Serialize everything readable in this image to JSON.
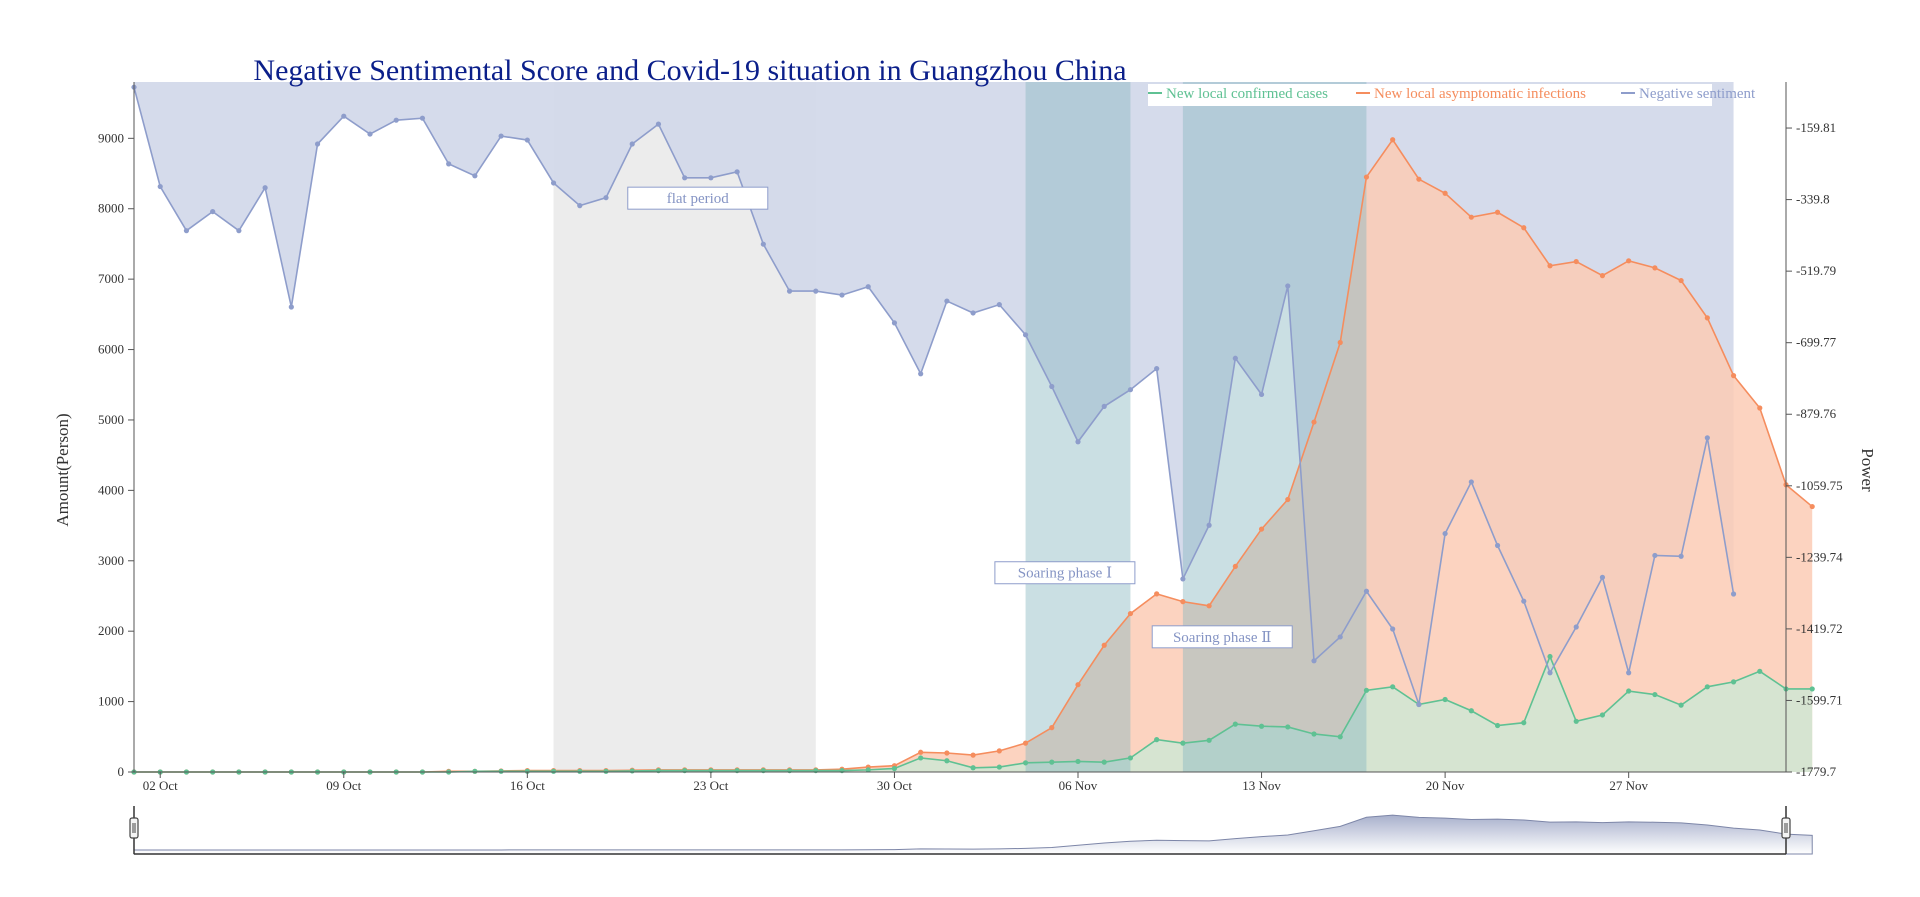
{
  "chart_data": {
    "type": "line",
    "title": "Negative Sentimental Score and Covid-19 situation in Guangzhou China",
    "ylabel": "Amount(Person)",
    "y2label": "Power",
    "x_tick_labels": [
      "02 Oct",
      "09 Oct",
      "16 Oct",
      "23 Oct",
      "30 Oct",
      "06 Nov",
      "13 Nov",
      "20 Nov",
      "27 Nov"
    ],
    "x_start": "2022-10-01",
    "x_end": "2022-12-03",
    "ylim": [
      0,
      9800
    ],
    "y_ticks": [
      0,
      1000,
      2000,
      3000,
      4000,
      5000,
      6000,
      7000,
      8000,
      9000
    ],
    "y2lim": [
      -1779.7,
      -44.0
    ],
    "y2_ticks": [
      -1779.7,
      -1599.71,
      -1419.72,
      -1239.74,
      -1059.75,
      -879.76,
      -699.77,
      -519.79,
      -339.8,
      -159.81
    ],
    "legend_position": "top-right",
    "colors": {
      "confirmed": "#5fc193",
      "asymptomatic": "#f58d5e",
      "sentiment": "#8e9dcb",
      "sentiment_fill": "#d3d9ea",
      "asym_fill": "#fccbb5",
      "conf_fill": "#c6ebd8",
      "flat_band": "#ececec",
      "phase_band": "#89b8c0",
      "title": "#0b1f8a"
    },
    "legend": [
      "New local confirmed cases",
      "New local asymptomatic infections",
      "Negative sentiment"
    ],
    "annotations": [
      {
        "text": "flat period",
        "date": "2022-10-22",
        "value": 8150
      },
      {
        "text": "Soaring phase Ⅰ",
        "date": "2022-11-05",
        "value": 2830
      },
      {
        "text": "Soaring phase Ⅱ",
        "date": "2022-11-11",
        "value": 1920
      }
    ],
    "bands": [
      {
        "name": "flat period",
        "from": "2022-10-17",
        "to": "2022-10-27"
      },
      {
        "name": "Soaring phase Ⅰ",
        "from": "2022-11-04",
        "to": "2022-11-08"
      },
      {
        "name": "Soaring phase Ⅱ",
        "from": "2022-11-10",
        "to": "2022-11-17"
      }
    ],
    "series": [
      {
        "name": "New local confirmed cases",
        "values": [
          0,
          0,
          0,
          0,
          0,
          0,
          0,
          0,
          0,
          0,
          0,
          0,
          0,
          10,
          10,
          10,
          10,
          10,
          10,
          15,
          20,
          20,
          20,
          20,
          20,
          20,
          20,
          20,
          30,
          50,
          200,
          160,
          60,
          70,
          130,
          140,
          150,
          140,
          200,
          460,
          410,
          450,
          680,
          650,
          640,
          540,
          500,
          1160,
          1210,
          960,
          1030,
          870,
          660,
          700,
          1640,
          720,
          810,
          1150,
          1100,
          950,
          1210,
          1280,
          1430,
          1180,
          1180
        ]
      },
      {
        "name": "New local asymptomatic infections",
        "values": [
          0,
          0,
          0,
          0,
          0,
          0,
          0,
          0,
          0,
          0,
          0,
          0,
          10,
          10,
          15,
          20,
          20,
          20,
          20,
          25,
          30,
          30,
          30,
          30,
          30,
          30,
          30,
          40,
          70,
          90,
          280,
          270,
          240,
          300,
          410,
          630,
          1240,
          1800,
          2250,
          2530,
          2420,
          2360,
          2920,
          3450,
          3870,
          4970,
          6100,
          8450,
          8980,
          8420,
          8220,
          7880,
          7950,
          7730,
          7190,
          7250,
          7050,
          7260,
          7160,
          6980,
          6450,
          5630,
          5170,
          4080,
          3770
        ]
      },
      {
        "name": "Negative sentiment",
        "values": [
          -57,
          -307,
          -418,
          -370,
          -418,
          -310,
          -610,
          -200,
          -130,
          -175,
          -140,
          -135,
          -250,
          -280,
          -180,
          -190,
          -298,
          -355,
          -335,
          -200,
          -150,
          -285,
          -285,
          -270,
          -452,
          -570,
          -570,
          -580,
          -559,
          -650,
          -778,
          -595,
          -625,
          -604,
          -680,
          -810,
          -949,
          -860,
          -818,
          -765,
          -1294,
          -1159,
          -739,
          -830,
          -557,
          -1500,
          -1440,
          -1325,
          -1420,
          -1610,
          -1180,
          -1050,
          -1210,
          -1350,
          -1530,
          -1415,
          -1290,
          -1530,
          -1235,
          -1237,
          -939,
          -1332
        ]
      }
    ],
    "navigator": {
      "range_start": 0,
      "range_end": 1
    }
  }
}
